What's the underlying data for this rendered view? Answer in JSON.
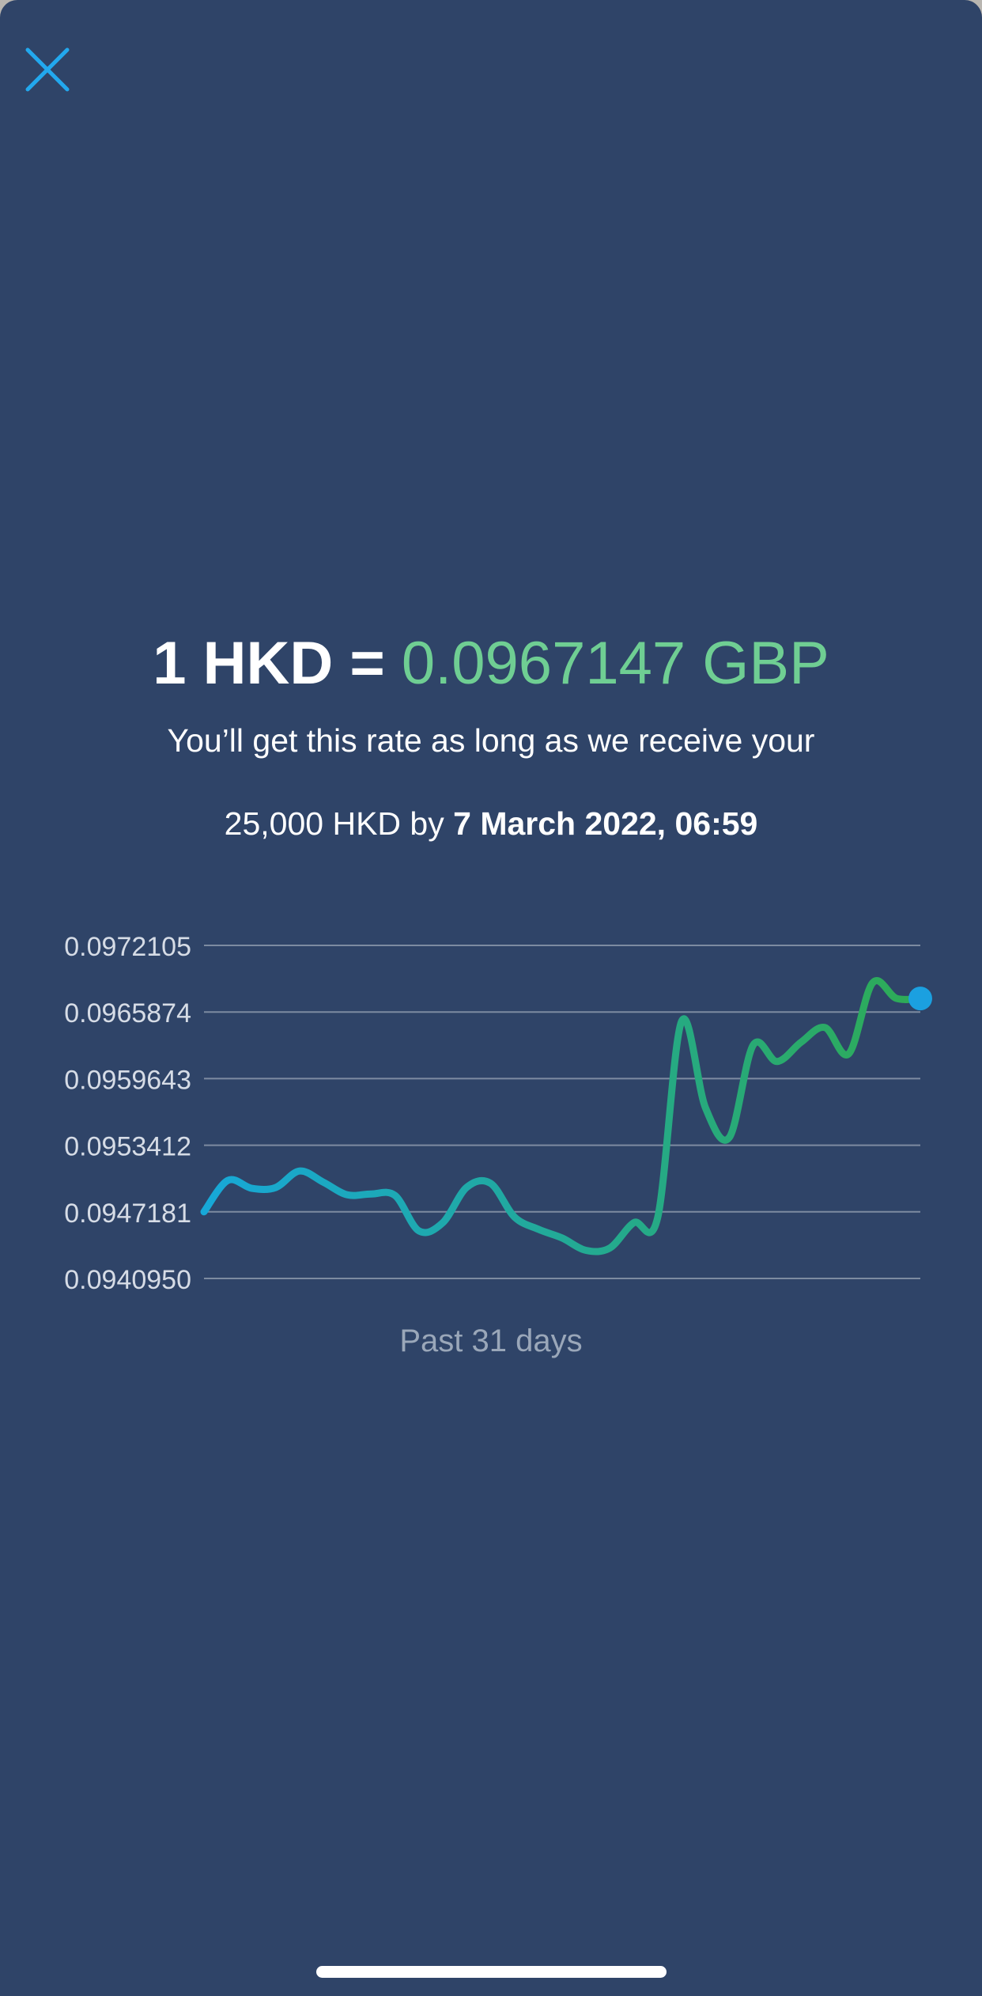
{
  "close": {
    "icon": "close-icon"
  },
  "rate": {
    "from": "1 HKD =",
    "to": "0.0967147 GBP",
    "accent_color": "#6fce93"
  },
  "guarantee": {
    "line1": "You’ll get this rate as long as we receive your",
    "amount_prefix": "25,000 HKD by ",
    "deadline": "7 March 2022, 06:59"
  },
  "chart_data": {
    "type": "line",
    "y_ticks": [
      "0.0972105",
      "0.0965874",
      "0.0959643",
      "0.0953412",
      "0.0947181",
      "0.0940950"
    ],
    "ylim": [
      0.094095,
      0.0972105
    ],
    "x": [
      0,
      1,
      2,
      3,
      4,
      5,
      6,
      7,
      8,
      9,
      10,
      11,
      12,
      13,
      14,
      15,
      16,
      17,
      18,
      19,
      20,
      21,
      22,
      23,
      24,
      25,
      26,
      27,
      28,
      29,
      30
    ],
    "series": [
      {
        "values": [
          0.094718,
          0.095012,
          0.094938,
          0.094945,
          0.0951,
          0.094995,
          0.094877,
          0.094885,
          0.094871,
          0.09454,
          0.094616,
          0.094947,
          0.094985,
          0.094671,
          0.094555,
          0.094473,
          0.094358,
          0.09438,
          0.094617,
          0.094665,
          0.096499,
          0.095693,
          0.095414,
          0.096278,
          0.096124,
          0.096304,
          0.096442,
          0.096196,
          0.09686,
          0.096715,
          0.096714
        ]
      }
    ],
    "line_color_start": "#17a8d8",
    "line_color_end": "#2eab55",
    "marker_color": "#1ba0e0",
    "x_caption": "Past 31 days"
  }
}
